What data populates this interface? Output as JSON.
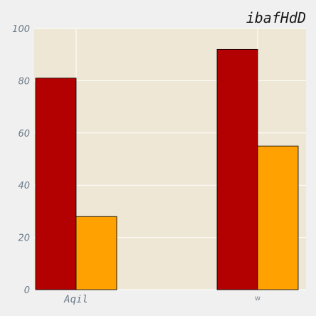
{
  "chart_data": {
    "type": "bar",
    "title": "ibafHdD",
    "xlabel": "",
    "ylabel": "",
    "categories": [
      "Aqil",
      "w"
    ],
    "series": [
      {
        "values": [
          81,
          92
        ],
        "color": "#b30000"
      },
      {
        "values": [
          28,
          55
        ],
        "color": "#ffa100"
      }
    ],
    "ylim": [
      0,
      100
    ],
    "yticks": [
      0,
      20,
      40,
      60,
      80,
      100
    ],
    "grid": true,
    "plot_background": "#efe7d5",
    "grid_color": "#ffffff"
  }
}
